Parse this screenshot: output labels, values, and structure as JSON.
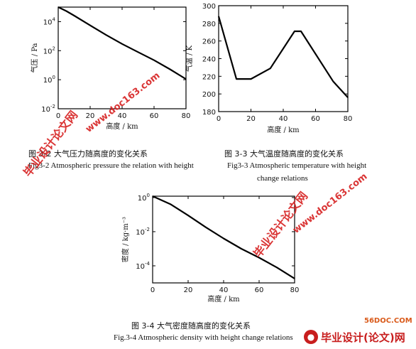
{
  "chart_data": [
    {
      "type": "line",
      "title": "",
      "xlabel": "高度 / km",
      "ylabel": "气压 / Pa",
      "yscale": "log",
      "xlim": [
        0,
        80
      ],
      "ylim": [
        0.01,
        100000
      ],
      "x_ticks": [
        "0",
        "20",
        "40",
        "60",
        "80"
      ],
      "y_ticks": [
        "10^4",
        "10^2",
        "10^0",
        "10^-2"
      ],
      "y_tick_values": [
        10000,
        100,
        1,
        0.01
      ],
      "x": [
        0,
        5,
        10,
        20,
        30,
        40,
        50,
        60,
        70,
        80
      ],
      "y": [
        100000,
        54000,
        26000,
        5500,
        1200,
        290,
        80,
        22,
        5.2,
        1.1
      ],
      "caption_zh": "图 3-2 大气压力随高度的变化关系",
      "caption_en": "Fig3-2 Atmospheric pressure the relation with height"
    },
    {
      "type": "line",
      "title": "",
      "xlabel": "高度 / km",
      "ylabel": "气温 / K",
      "xlim": [
        0,
        80
      ],
      "ylim": [
        180,
        300
      ],
      "x_ticks": [
        "0",
        "20",
        "40",
        "60",
        "80"
      ],
      "y_ticks": [
        "300",
        "280",
        "260",
        "240",
        "220",
        "200",
        "180"
      ],
      "y_tick_values": [
        300,
        280,
        260,
        240,
        220,
        200,
        180
      ],
      "x": [
        0,
        11,
        20,
        32,
        47,
        51,
        71,
        80
      ],
      "y": [
        288,
        217,
        217,
        229,
        271,
        271,
        214,
        196
      ],
      "caption_zh": "图 3-3 大气温度随高度的变化关系",
      "caption_en_line1": "Fig3-3 Atmospheric temperature with height",
      "caption_en_line2": "change relations"
    },
    {
      "type": "line",
      "title": "",
      "xlabel": "高度 / km",
      "ylabel": "密度 / kg·m⁻³",
      "yscale": "log",
      "xlim": [
        0,
        80
      ],
      "ylim": [
        1e-05,
        1.2
      ],
      "x_ticks": [
        "0",
        "20",
        "40",
        "60",
        "80"
      ],
      "y_ticks": [
        "10^0",
        "10^-2",
        "10^-4"
      ],
      "y_tick_values": [
        1,
        0.01,
        0.0001
      ],
      "x": [
        0,
        10,
        20,
        30,
        40,
        50,
        60,
        70,
        80
      ],
      "y": [
        1.2,
        0.41,
        0.089,
        0.018,
        0.004,
        0.001,
        0.0003,
        8e-05,
        1.8e-05
      ],
      "caption_zh": "图 3-4   大气密度随高度的变化关系",
      "caption_en": "Fig.3-4 Atmospheric density with height change relations"
    }
  ],
  "watermarks": {
    "site_cn": "毕业设计论文网",
    "site_url": "www.doc163.com",
    "badge_site": "56DOC.COM",
    "badge_text": "毕业设计(论文)网"
  }
}
